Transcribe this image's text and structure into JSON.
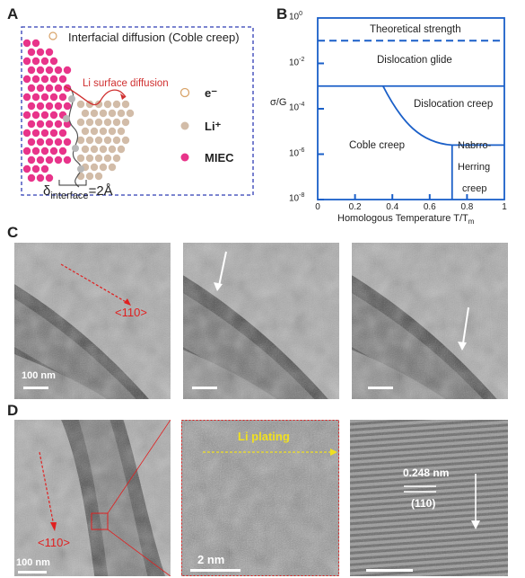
{
  "panel_letters": [
    "A",
    "B",
    "C",
    "D"
  ],
  "panel_a": {
    "title": "Interfacial diffusion (Coble creep)",
    "surface_label": "Li surface diffusion",
    "legend": [
      {
        "label": "e⁻",
        "color": "#d9a46a",
        "style": "hollow"
      },
      {
        "label": "Li⁺",
        "color": "#d2bca8",
        "style": "filled"
      },
      {
        "label": "MIEC",
        "color": "#e8348a",
        "style": "filled"
      }
    ],
    "delta_symbol": "δ",
    "delta_subscript": "interface",
    "delta_value": "=2Å"
  },
  "chart_data": {
    "type": "deformation-mechanism-map",
    "xlabel_main": "Homologous Temperature T/T",
    "xlabel_sub": "m",
    "ylabel": "σ/G",
    "xlim": [
      0,
      1
    ],
    "x_ticks": [
      "0",
      "0.2",
      "0.4",
      "0.6",
      "0.8",
      "1"
    ],
    "y_ticks": [
      {
        "base": "10",
        "exp": "0"
      },
      {
        "base": "10",
        "exp": "-2"
      },
      {
        "base": "10",
        "exp": "-4"
      },
      {
        "base": "10",
        "exp": "-6"
      },
      {
        "base": "10",
        "exp": "-8"
      }
    ],
    "regions": [
      "Theoretical strength",
      "Dislocation glide",
      "Dislocation creep",
      "Coble creep",
      "Nabrro-",
      "Herring",
      "creep"
    ],
    "color": "#1a5fc8"
  },
  "panel_c": {
    "direction_label": "<110>",
    "scale_label": "100 nm"
  },
  "panel_d": {
    "direction_label": "<110>",
    "scale_label_1": "100 nm",
    "plating_label": "Li plating",
    "scale_label_2": "2 nm",
    "spacing_label": "0.248 nm",
    "plane_label": "(110)"
  }
}
